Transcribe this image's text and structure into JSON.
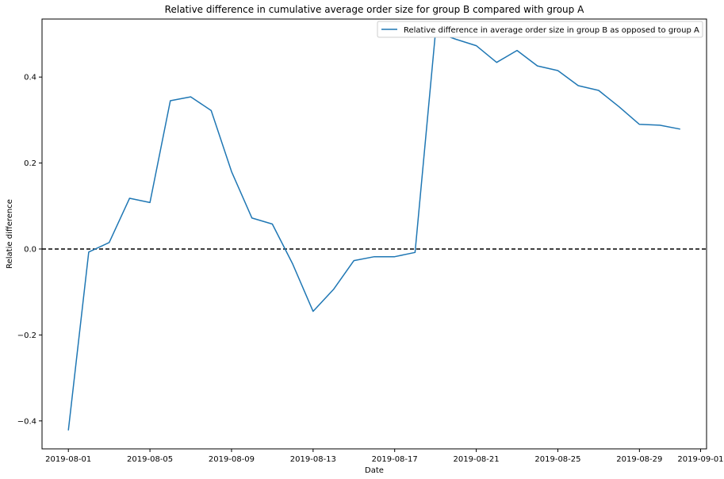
{
  "chart_data": {
    "type": "line",
    "title": "Relative difference in cumulative average order size for group B compared with group A",
    "xlabel": "Date",
    "ylabel": "Relatie difference",
    "x_tick_labels": [
      "2019-08-01",
      "2019-08-05",
      "2019-08-09",
      "2019-08-13",
      "2019-08-17",
      "2019-08-21",
      "2019-08-25",
      "2019-08-29",
      "2019-09-01"
    ],
    "y_tick_labels": [
      "-0.4",
      "-0.2",
      "0.0",
      "0.2",
      "0.4"
    ],
    "y_ticks": [
      -0.4,
      -0.2,
      0.0,
      0.2,
      0.4
    ],
    "ylim": [
      -0.465,
      0.535
    ],
    "xlim": [
      "2019-07-30T17:00",
      "2019-09-01T07:00"
    ],
    "reference_line": {
      "y": 0.0,
      "style": "dashed",
      "color": "#000000"
    },
    "legend_position": "top-right",
    "series": [
      {
        "name": "Relative difference in average order size in group B as opposed to group A",
        "color": "#1f77b4",
        "x": [
          "2019-08-01",
          "2019-08-02",
          "2019-08-03",
          "2019-08-04",
          "2019-08-05",
          "2019-08-06",
          "2019-08-07",
          "2019-08-08",
          "2019-08-09",
          "2019-08-10",
          "2019-08-11",
          "2019-08-12",
          "2019-08-13",
          "2019-08-14",
          "2019-08-15",
          "2019-08-16",
          "2019-08-17",
          "2019-08-18",
          "2019-08-19",
          "2019-08-20",
          "2019-08-21",
          "2019-08-22",
          "2019-08-23",
          "2019-08-24",
          "2019-08-25",
          "2019-08-26",
          "2019-08-27",
          "2019-08-28",
          "2019-08-29",
          "2019-08-30",
          "2019-08-31"
        ],
        "values": [
          -0.422,
          -0.007,
          0.015,
          0.118,
          0.108,
          0.345,
          0.354,
          0.322,
          0.18,
          0.072,
          0.058,
          -0.035,
          -0.145,
          -0.094,
          -0.027,
          -0.018,
          -0.018,
          -0.008,
          0.505,
          0.488,
          0.473,
          0.434,
          0.462,
          0.426,
          0.415,
          0.38,
          0.369,
          0.331,
          0.29,
          0.288,
          0.279
        ]
      }
    ]
  }
}
